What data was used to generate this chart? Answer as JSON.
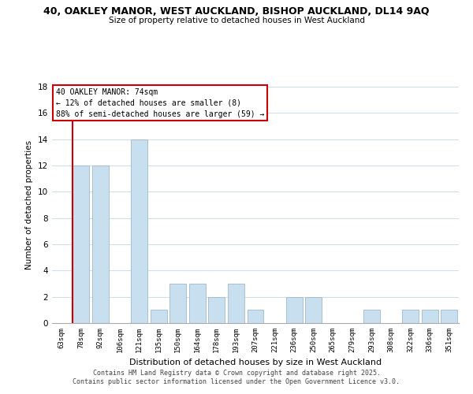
{
  "title_line1": "40, OAKLEY MANOR, WEST AUCKLAND, BISHOP AUCKLAND, DL14 9AQ",
  "title_line2": "Size of property relative to detached houses in West Auckland",
  "categories": [
    "63sqm",
    "78sqm",
    "92sqm",
    "106sqm",
    "121sqm",
    "135sqm",
    "150sqm",
    "164sqm",
    "178sqm",
    "193sqm",
    "207sqm",
    "221sqm",
    "236sqm",
    "250sqm",
    "265sqm",
    "279sqm",
    "293sqm",
    "308sqm",
    "322sqm",
    "336sqm",
    "351sqm"
  ],
  "values": [
    0,
    12,
    12,
    0,
    14,
    1,
    3,
    3,
    2,
    3,
    1,
    0,
    2,
    2,
    0,
    0,
    1,
    0,
    1,
    1,
    1
  ],
  "bar_color": "#c8dff0",
  "bar_edge_color": "#a0b8cc",
  "ylabel": "Number of detached properties",
  "xlabel": "Distribution of detached houses by size in West Auckland",
  "ylim": [
    0,
    18
  ],
  "yticks": [
    0,
    2,
    4,
    6,
    8,
    10,
    12,
    14,
    16,
    18
  ],
  "annotation_title": "40 OAKLEY MANOR: 74sqm",
  "annotation_line1": "← 12% of detached houses are smaller (8)",
  "annotation_line2": "88% of semi-detached houses are larger (59) →",
  "annotation_box_color": "#ffffff",
  "annotation_box_edge": "#cc0000",
  "red_line_bar_index": 1,
  "red_line_color": "#cc0000",
  "footer_line1": "Contains HM Land Registry data © Crown copyright and database right 2025.",
  "footer_line2": "Contains public sector information licensed under the Open Government Licence v3.0.",
  "bg_color": "#ffffff",
  "grid_color": "#ccddf0"
}
